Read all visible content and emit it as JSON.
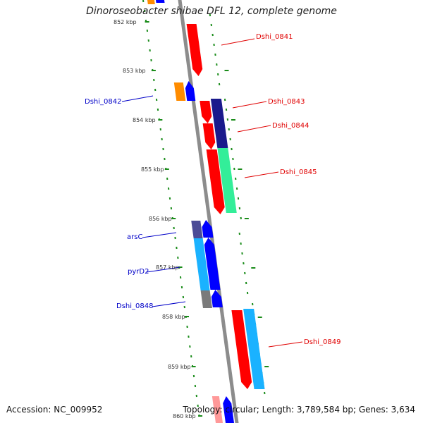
{
  "header": {
    "title": "Dinoroseobacter shibae DFL 12, complete genome"
  },
  "footer": {
    "accession": "Accession: NC_009952",
    "topology": "Topology: circular; Length: 3,789,584 bp; Genes: 3,634"
  },
  "kbp_labels": [
    {
      "id": "852",
      "text": "852 kbp"
    },
    {
      "id": "853",
      "text": "853 kbp"
    },
    {
      "id": "854",
      "text": "854 kbp"
    },
    {
      "id": "855",
      "text": "855 kbp"
    },
    {
      "id": "856",
      "text": "856 kbp"
    },
    {
      "id": "857",
      "text": "857 kbp"
    },
    {
      "id": "858",
      "text": "858 kbp"
    },
    {
      "id": "859",
      "text": "859 kbp"
    },
    {
      "id": "860",
      "text": "860 kbp"
    }
  ],
  "gene_labels": [
    {
      "id": "dshi_0841",
      "text": "Dshi_0841",
      "color": "#e00000"
    },
    {
      "id": "dshi_0842",
      "text": "Dshi_0842",
      "color": "#0000c8"
    },
    {
      "id": "dshi_0843",
      "text": "Dshi_0843",
      "color": "#e00000"
    },
    {
      "id": "dshi_0844",
      "text": "Dshi_0844",
      "color": "#e00000"
    },
    {
      "id": "dshi_0845",
      "text": "Dshi_0845",
      "color": "#e00000"
    },
    {
      "id": "arsc",
      "text": "arsC",
      "color": "#0000c8"
    },
    {
      "id": "pyrd2",
      "text": "pyrD2",
      "color": "#0000c8"
    },
    {
      "id": "dshi_0848",
      "text": "Dshi_0848",
      "color": "#0000c8"
    },
    {
      "id": "dshi_0849",
      "text": "Dshi_0849",
      "color": "#e00000"
    }
  ],
  "colors": {
    "backbone": "#8c8c8c",
    "forward_gene": "#ff0000",
    "reverse_gene": "#0000ff",
    "navy_feature": "#1a1a8c",
    "sea_green_feature": "#33ee99",
    "cyan_feature": "#1ab2ff",
    "orange_feature": "#ff8c00",
    "slate_feature": "#4b4b96",
    "gray_feature": "#7a7a7a",
    "tick_green": "#1a8c1a"
  }
}
